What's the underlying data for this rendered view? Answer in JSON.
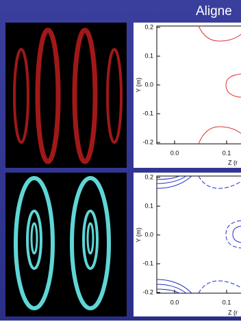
{
  "header": {
    "title": "Aligne"
  },
  "plots": [
    {
      "y_label": "Y (m)",
      "x_label": "Z (r",
      "yticks": [
        "0.2",
        "0.1",
        "0.0",
        "-0.1",
        "-0.2"
      ],
      "xticks": [
        "0.0",
        "0.1"
      ]
    },
    {
      "y_label": "Y (m)",
      "x_label": "Z (r",
      "yticks": [
        "0.2",
        "0.1",
        "0.0",
        "-0.1",
        "-0.2"
      ],
      "xticks": [
        "0.0",
        "0.1"
      ]
    }
  ]
}
